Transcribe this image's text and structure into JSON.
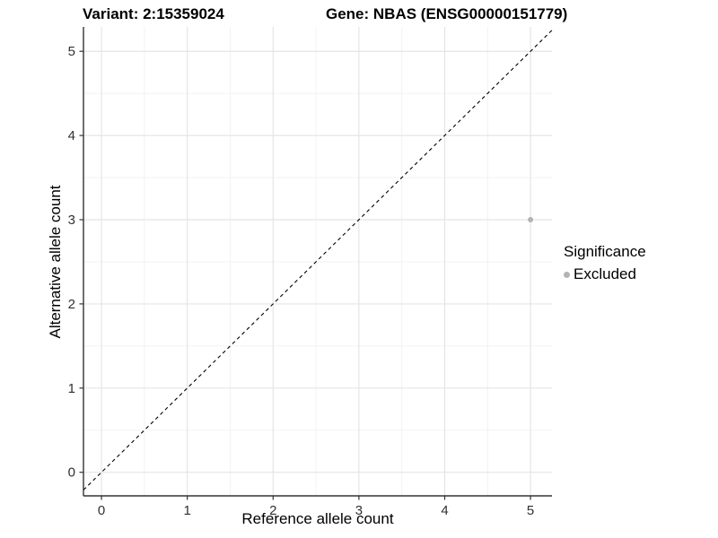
{
  "chart_data": {
    "type": "scatter",
    "titles": {
      "left": "Variant: 2:15359024",
      "right": "Gene: NBAS (ENSG00000151779)"
    },
    "xlabel": "Reference allele count",
    "ylabel": "Alternative allele count",
    "xlim": [
      -0.21,
      5.25
    ],
    "ylim": [
      -0.28,
      5.29
    ],
    "xticks": [
      0,
      1,
      2,
      3,
      4,
      5
    ],
    "yticks": [
      0,
      1,
      2,
      3,
      4,
      5
    ],
    "grid": "on",
    "minor_grid": "on",
    "points": [
      {
        "x": 5,
        "y": 3,
        "series": "Excluded"
      }
    ],
    "reference_line": {
      "slope": 1,
      "intercept": 0,
      "linetype": "dashed"
    },
    "legend": {
      "title": "Significance",
      "position": "right",
      "entries": [
        {
          "label": "Excluded",
          "color": "#b3b3b3"
        }
      ]
    },
    "colors": {
      "point": "#b3b3b3",
      "grid_major": "#e5e5e5",
      "grid_minor": "#f2f2f2",
      "axis": "#333333",
      "tick_label": "#303030",
      "abline": "#000000",
      "background": "#ffffff"
    }
  }
}
